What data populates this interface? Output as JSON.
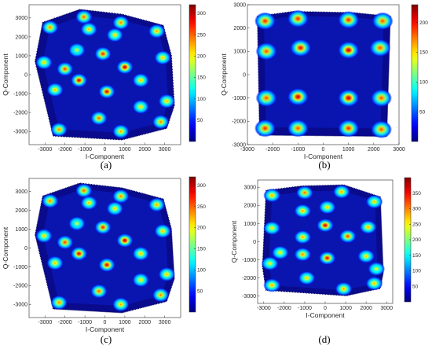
{
  "figure": {
    "colormap": "jet",
    "background": "#ffffff"
  },
  "chart_data": [
    {
      "type": "heatmap",
      "caption": "(a)",
      "xlabel": "I-Component",
      "ylabel": "Q-Component",
      "xlim": [
        -3800,
        3800
      ],
      "ylim": [
        -3700,
        3700
      ],
      "xticks": [
        -3000,
        -2000,
        -1000,
        0,
        1000,
        2000,
        3000
      ],
      "yticks": [
        -3000,
        -2000,
        -1000,
        0,
        1000,
        2000,
        3000
      ],
      "colorbar": {
        "min": 0,
        "max": 320,
        "ticks": [
          50,
          100,
          150,
          200,
          250,
          300
        ]
      },
      "cloud_extent": 3500,
      "clusters": [
        {
          "i": -2750,
          "q": 2500,
          "density": 250
        },
        {
          "i": -1050,
          "q": 3050,
          "density": 260
        },
        {
          "i": 800,
          "q": 2750,
          "density": 250
        },
        {
          "i": 2600,
          "q": 2300,
          "density": 240
        },
        {
          "i": -2500,
          "q": -800,
          "density": 230
        },
        {
          "i": -800,
          "q": 2400,
          "density": 230
        },
        {
          "i": -1400,
          "q": 1300,
          "density": 190
        },
        {
          "i": 500,
          "q": 2100,
          "density": 220
        },
        {
          "i": 2900,
          "q": 900,
          "density": 230
        },
        {
          "i": -3050,
          "q": 650,
          "density": 220
        },
        {
          "i": -1300,
          "q": -300,
          "density": 300
        },
        {
          "i": -100,
          "q": 1100,
          "density": 280
        },
        {
          "i": 1000,
          "q": 400,
          "density": 310
        },
        {
          "i": -2000,
          "q": 300,
          "density": 270
        },
        {
          "i": 100,
          "q": -900,
          "density": 300
        },
        {
          "i": 1800,
          "q": -300,
          "density": 230
        },
        {
          "i": -2300,
          "q": -2900,
          "density": 250
        },
        {
          "i": -300,
          "q": -2300,
          "density": 260
        },
        {
          "i": 800,
          "q": -3000,
          "density": 240
        },
        {
          "i": 2800,
          "q": -2500,
          "density": 250
        },
        {
          "i": 3100,
          "q": -1400,
          "density": 230
        },
        {
          "i": 1800,
          "q": -1700,
          "density": 220
        }
      ]
    },
    {
      "type": "heatmap",
      "caption": "(b)",
      "xlabel": "I-Component",
      "ylabel": "Q-Component",
      "xlim": [
        -3000,
        3000
      ],
      "ylim": [
        -3000,
        3000
      ],
      "xticks": [
        -3000,
        -2000,
        -1000,
        0,
        1000,
        2000,
        3000
      ],
      "yticks": [
        -3000,
        -2000,
        -1000,
        0,
        1000,
        2000,
        3000
      ],
      "colorbar": {
        "min": 0,
        "max": 230,
        "ticks": [
          50,
          100,
          150,
          200
        ]
      },
      "cloud_extent": 2850,
      "clusters": [
        {
          "i": -2300,
          "q": 2300,
          "density": 200
        },
        {
          "i": -1000,
          "q": 2400,
          "density": 200
        },
        {
          "i": 1000,
          "q": 2350,
          "density": 200
        },
        {
          "i": 2350,
          "q": 2300,
          "density": 190
        },
        {
          "i": -2250,
          "q": 1000,
          "density": 190
        },
        {
          "i": -900,
          "q": 1150,
          "density": 210
        },
        {
          "i": 1000,
          "q": 1050,
          "density": 220
        },
        {
          "i": 2250,
          "q": 1150,
          "density": 190
        },
        {
          "i": -2250,
          "q": -1000,
          "density": 190
        },
        {
          "i": -1000,
          "q": -950,
          "density": 220
        },
        {
          "i": 1000,
          "q": -1000,
          "density": 220
        },
        {
          "i": 2300,
          "q": -1000,
          "density": 190
        },
        {
          "i": -2300,
          "q": -2300,
          "density": 200
        },
        {
          "i": -1000,
          "q": -2300,
          "density": 190
        },
        {
          "i": 1000,
          "q": -2300,
          "density": 200
        },
        {
          "i": 2300,
          "q": -2350,
          "density": 190
        }
      ]
    },
    {
      "type": "heatmap",
      "caption": "(c)",
      "xlabel": "I-Component",
      "ylabel": "Q-Component",
      "xlim": [
        -3800,
        3800
      ],
      "ylim": [
        -3700,
        3700
      ],
      "xticks": [
        -3000,
        -2000,
        -1000,
        0,
        1000,
        2000,
        3000
      ],
      "yticks": [
        -3000,
        -2000,
        -1000,
        0,
        1000,
        2000,
        3000
      ],
      "colorbar": {
        "min": 0,
        "max": 320,
        "ticks": [
          50,
          100,
          150,
          200,
          250,
          300
        ]
      },
      "cloud_extent": 3500,
      "clusters": [
        {
          "i": -2750,
          "q": 2500,
          "density": 250
        },
        {
          "i": -1050,
          "q": 3050,
          "density": 260
        },
        {
          "i": 800,
          "q": 2750,
          "density": 250
        },
        {
          "i": 2600,
          "q": 2300,
          "density": 240
        },
        {
          "i": -2500,
          "q": -800,
          "density": 230
        },
        {
          "i": -800,
          "q": 2400,
          "density": 230
        },
        {
          "i": -1400,
          "q": 1300,
          "density": 190
        },
        {
          "i": 500,
          "q": 2100,
          "density": 220
        },
        {
          "i": 2900,
          "q": 900,
          "density": 230
        },
        {
          "i": -3050,
          "q": 650,
          "density": 220
        },
        {
          "i": -1300,
          "q": -300,
          "density": 300
        },
        {
          "i": -100,
          "q": 1100,
          "density": 280
        },
        {
          "i": 1000,
          "q": 400,
          "density": 310
        },
        {
          "i": -2000,
          "q": 300,
          "density": 270
        },
        {
          "i": 100,
          "q": -900,
          "density": 300
        },
        {
          "i": 1800,
          "q": -300,
          "density": 230
        },
        {
          "i": -2300,
          "q": -2900,
          "density": 250
        },
        {
          "i": -300,
          "q": -2300,
          "density": 260
        },
        {
          "i": 800,
          "q": -3000,
          "density": 240
        },
        {
          "i": 2800,
          "q": -2500,
          "density": 250
        },
        {
          "i": 3100,
          "q": -1400,
          "density": 230
        },
        {
          "i": 1800,
          "q": -1700,
          "density": 220
        }
      ]
    },
    {
      "type": "heatmap",
      "caption": "(d)",
      "xlabel": "I-Component",
      "ylabel": "Q-Component",
      "xlim": [
        -3300,
        3300
      ],
      "ylim": [
        -3400,
        3400
      ],
      "xticks": [
        -3000,
        -2000,
        -1000,
        0,
        1000,
        2000,
        3000
      ],
      "yticks": [
        -3000,
        -2000,
        -1000,
        0,
        1000,
        2000,
        3000
      ],
      "colorbar": {
        "min": 0,
        "max": 400,
        "ticks": [
          50,
          100,
          150,
          200,
          250,
          300,
          350
        ]
      },
      "cloud_extent": 3100,
      "clusters": [
        {
          "i": -2600,
          "q": 2550,
          "density": 300
        },
        {
          "i": -1000,
          "q": 2700,
          "density": 320
        },
        {
          "i": 800,
          "q": 2750,
          "density": 300
        },
        {
          "i": 2400,
          "q": 2200,
          "density": 280
        },
        {
          "i": -2600,
          "q": 750,
          "density": 270
        },
        {
          "i": -1100,
          "q": 1700,
          "density": 300
        },
        {
          "i": 100,
          "q": 1900,
          "density": 280
        },
        {
          "i": 2100,
          "q": 800,
          "density": 300
        },
        {
          "i": -1100,
          "q": 250,
          "density": 300
        },
        {
          "i": 0,
          "q": 900,
          "density": 380
        },
        {
          "i": 1100,
          "q": 300,
          "density": 340
        },
        {
          "i": -2200,
          "q": -600,
          "density": 270
        },
        {
          "i": -1100,
          "q": -700,
          "density": 310
        },
        {
          "i": 100,
          "q": -900,
          "density": 370
        },
        {
          "i": 2000,
          "q": -800,
          "density": 280
        },
        {
          "i": -2600,
          "q": -2400,
          "density": 300
        },
        {
          "i": -900,
          "q": -2000,
          "density": 280
        },
        {
          "i": 900,
          "q": -2600,
          "density": 300
        },
        {
          "i": 2400,
          "q": -2300,
          "density": 290
        },
        {
          "i": -2700,
          "q": -1200,
          "density": 260
        },
        {
          "i": 2500,
          "q": -1500,
          "density": 250
        }
      ]
    }
  ]
}
